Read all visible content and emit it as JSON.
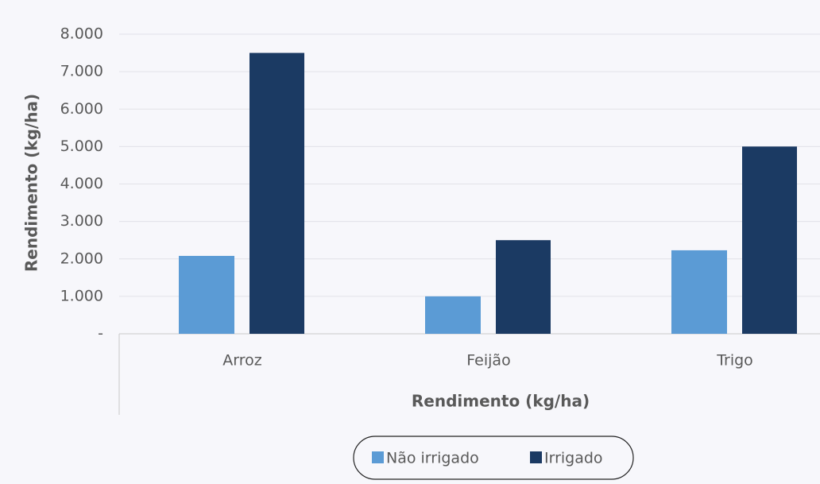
{
  "chart_data": {
    "type": "bar",
    "categories": [
      "Arroz",
      "Feijão",
      "Trigo"
    ],
    "series": [
      {
        "name": "Não irrigado",
        "color": "#5b9bd5",
        "values": [
          2080,
          1000,
          2230
        ]
      },
      {
        "name": "Irrigado",
        "color": "#1b3a63",
        "values": [
          7500,
          2500,
          5000
        ]
      }
    ],
    "x_label": "Rendimento (kg/ha)",
    "y_label": "Rendimento (kg/ha)",
    "ylim": [
      0,
      8000
    ],
    "yticks": [
      {
        "value": 0,
        "label": "-"
      },
      {
        "value": 1000,
        "label": "1.000"
      },
      {
        "value": 2000,
        "label": "2.000"
      },
      {
        "value": 3000,
        "label": "3.000"
      },
      {
        "value": 4000,
        "label": "4.000"
      },
      {
        "value": 5000,
        "label": "5.000"
      },
      {
        "value": 6000,
        "label": "6.000"
      },
      {
        "value": 7000,
        "label": "7.000"
      },
      {
        "value": 8000,
        "label": "8.000"
      }
    ],
    "grid": true,
    "legend": "bottom"
  }
}
